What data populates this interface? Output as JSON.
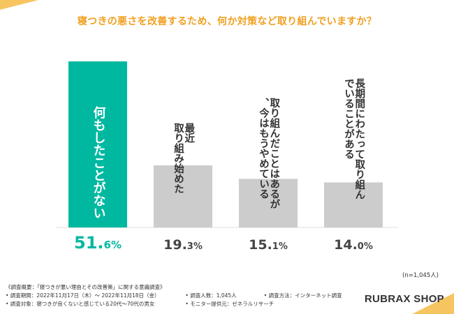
{
  "title": "寝つきの悪さを改善するため、何か対策など取り組んでいますか？",
  "colors": {
    "accent": "#00b8a0",
    "muted": "#cccccc",
    "title": "#f0a020",
    "pct_muted": "#444444"
  },
  "chart_data": {
    "type": "bar",
    "title": "寝つきの悪さを改善するため、何か対策など取り組んでいますか？",
    "categories": [
      "何もしたことがない",
      "最近取り組み始めた",
      "取り組んだことはあるが、今はもうやめている",
      "長期間にわたって取り組んでいることがある"
    ],
    "values": [
      51.6,
      19.3,
      15.1,
      14.0
    ],
    "value_labels": [
      {
        "big": "51.",
        "small": "6%"
      },
      {
        "big": "19.",
        "small": "3%"
      },
      {
        "big": "15.",
        "small": "1%"
      },
      {
        "big": "14.",
        "small": "0%"
      }
    ],
    "ylim": [
      0,
      51.6
    ],
    "grid": false,
    "legend": "none",
    "highlight_index": 0
  },
  "sample_size": "(n=1,045人)",
  "survey": {
    "overview": "《調査概要：「寝つきが悪い理由とその改善策」に関する意識調査》",
    "period": "• 調査期間：2022年11月17日（木）〜 2022年11月18日（金）",
    "respondents": "• 調査人数：1,045人",
    "method": "• 調査方法：インターネット調査",
    "target": "• 調査対象：寝つきが良くないと感じている20代〜70代の男女",
    "provider": "• モニター提供元：ゼネラルリサーチ"
  },
  "brand": "RUBRAX SHOP"
}
